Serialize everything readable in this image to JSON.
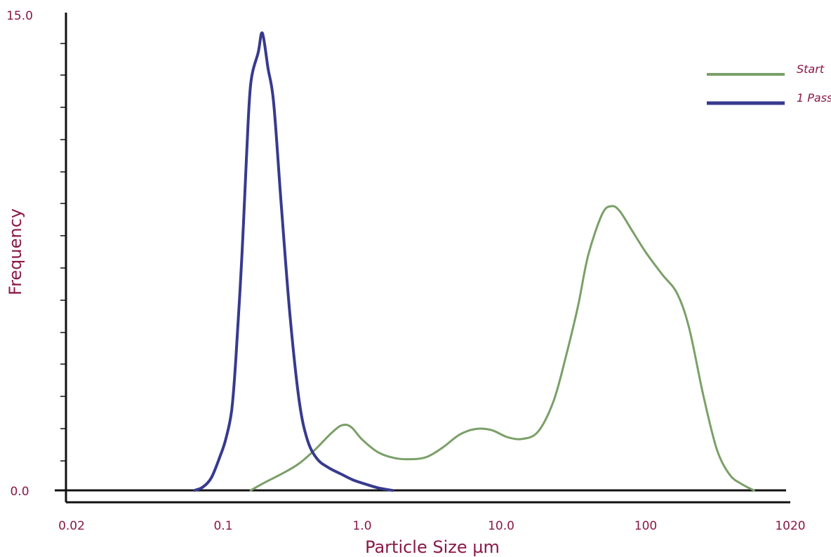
{
  "chart_data": {
    "type": "line",
    "title": "",
    "xlabel": "Particle Size µm",
    "ylabel": "Frequency",
    "x_scale": "log",
    "x_ticks": [
      {
        "value": 0.02,
        "label": "0.02"
      },
      {
        "value": 0.1,
        "label": "0.1"
      },
      {
        "value": 1,
        "label": "1.0"
      },
      {
        "value": 10,
        "label": "10.0"
      },
      {
        "value": 100,
        "label": "100"
      },
      {
        "value": 1020,
        "label": "1020"
      }
    ],
    "y_ticks": [
      {
        "value": 0,
        "label": "0.0"
      },
      {
        "value": 15,
        "label": "15.0"
      }
    ],
    "xlim": [
      0.02,
      1020
    ],
    "ylim": [
      0,
      15
    ],
    "grid": false,
    "legend_position": "top-right",
    "series": [
      {
        "name": "Start",
        "color": "#7aa068",
        "points": [
          [
            0.14,
            0.0
          ],
          [
            0.18,
            0.25
          ],
          [
            0.25,
            0.55
          ],
          [
            0.33,
            0.85
          ],
          [
            0.44,
            1.3
          ],
          [
            0.58,
            1.8
          ],
          [
            0.7,
            2.05
          ],
          [
            0.82,
            2.0
          ],
          [
            1.0,
            1.6
          ],
          [
            1.3,
            1.2
          ],
          [
            1.7,
            1.02
          ],
          [
            2.2,
            0.98
          ],
          [
            2.9,
            1.05
          ],
          [
            3.8,
            1.35
          ],
          [
            5.0,
            1.75
          ],
          [
            6.5,
            1.93
          ],
          [
            8.5,
            1.9
          ],
          [
            11,
            1.68
          ],
          [
            14,
            1.62
          ],
          [
            18,
            1.85
          ],
          [
            23,
            2.8
          ],
          [
            28,
            4.2
          ],
          [
            34,
            5.8
          ],
          [
            40,
            7.4
          ],
          [
            50,
            8.7
          ],
          [
            58,
            8.95
          ],
          [
            66,
            8.8
          ],
          [
            80,
            8.2
          ],
          [
            100,
            7.5
          ],
          [
            130,
            6.8
          ],
          [
            165,
            6.2
          ],
          [
            200,
            5.1
          ],
          [
            250,
            3.0
          ],
          [
            310,
            1.3
          ],
          [
            380,
            0.5
          ],
          [
            460,
            0.2
          ],
          [
            560,
            0.0
          ]
        ]
      },
      {
        "name": "1 Pass",
        "color": "#373a8e",
        "points": [
          [
            0.052,
            0.0
          ],
          [
            0.06,
            0.1
          ],
          [
            0.07,
            0.4
          ],
          [
            0.082,
            1.1
          ],
          [
            0.09,
            1.6
          ],
          [
            0.1,
            2.5
          ],
          [
            0.108,
            4.2
          ],
          [
            0.12,
            7.4
          ],
          [
            0.13,
            10.5
          ],
          [
            0.14,
            12.8
          ],
          [
            0.16,
            13.8
          ],
          [
            0.172,
            14.4
          ],
          [
            0.19,
            13.3
          ],
          [
            0.21,
            12.2
          ],
          [
            0.24,
            9.0
          ],
          [
            0.28,
            5.5
          ],
          [
            0.33,
            2.8
          ],
          [
            0.38,
            1.6
          ],
          [
            0.45,
            1.0
          ],
          [
            0.55,
            0.72
          ],
          [
            0.7,
            0.5
          ],
          [
            0.85,
            0.33
          ],
          [
            1.05,
            0.2
          ],
          [
            1.3,
            0.08
          ],
          [
            1.65,
            0.0
          ]
        ]
      }
    ]
  }
}
